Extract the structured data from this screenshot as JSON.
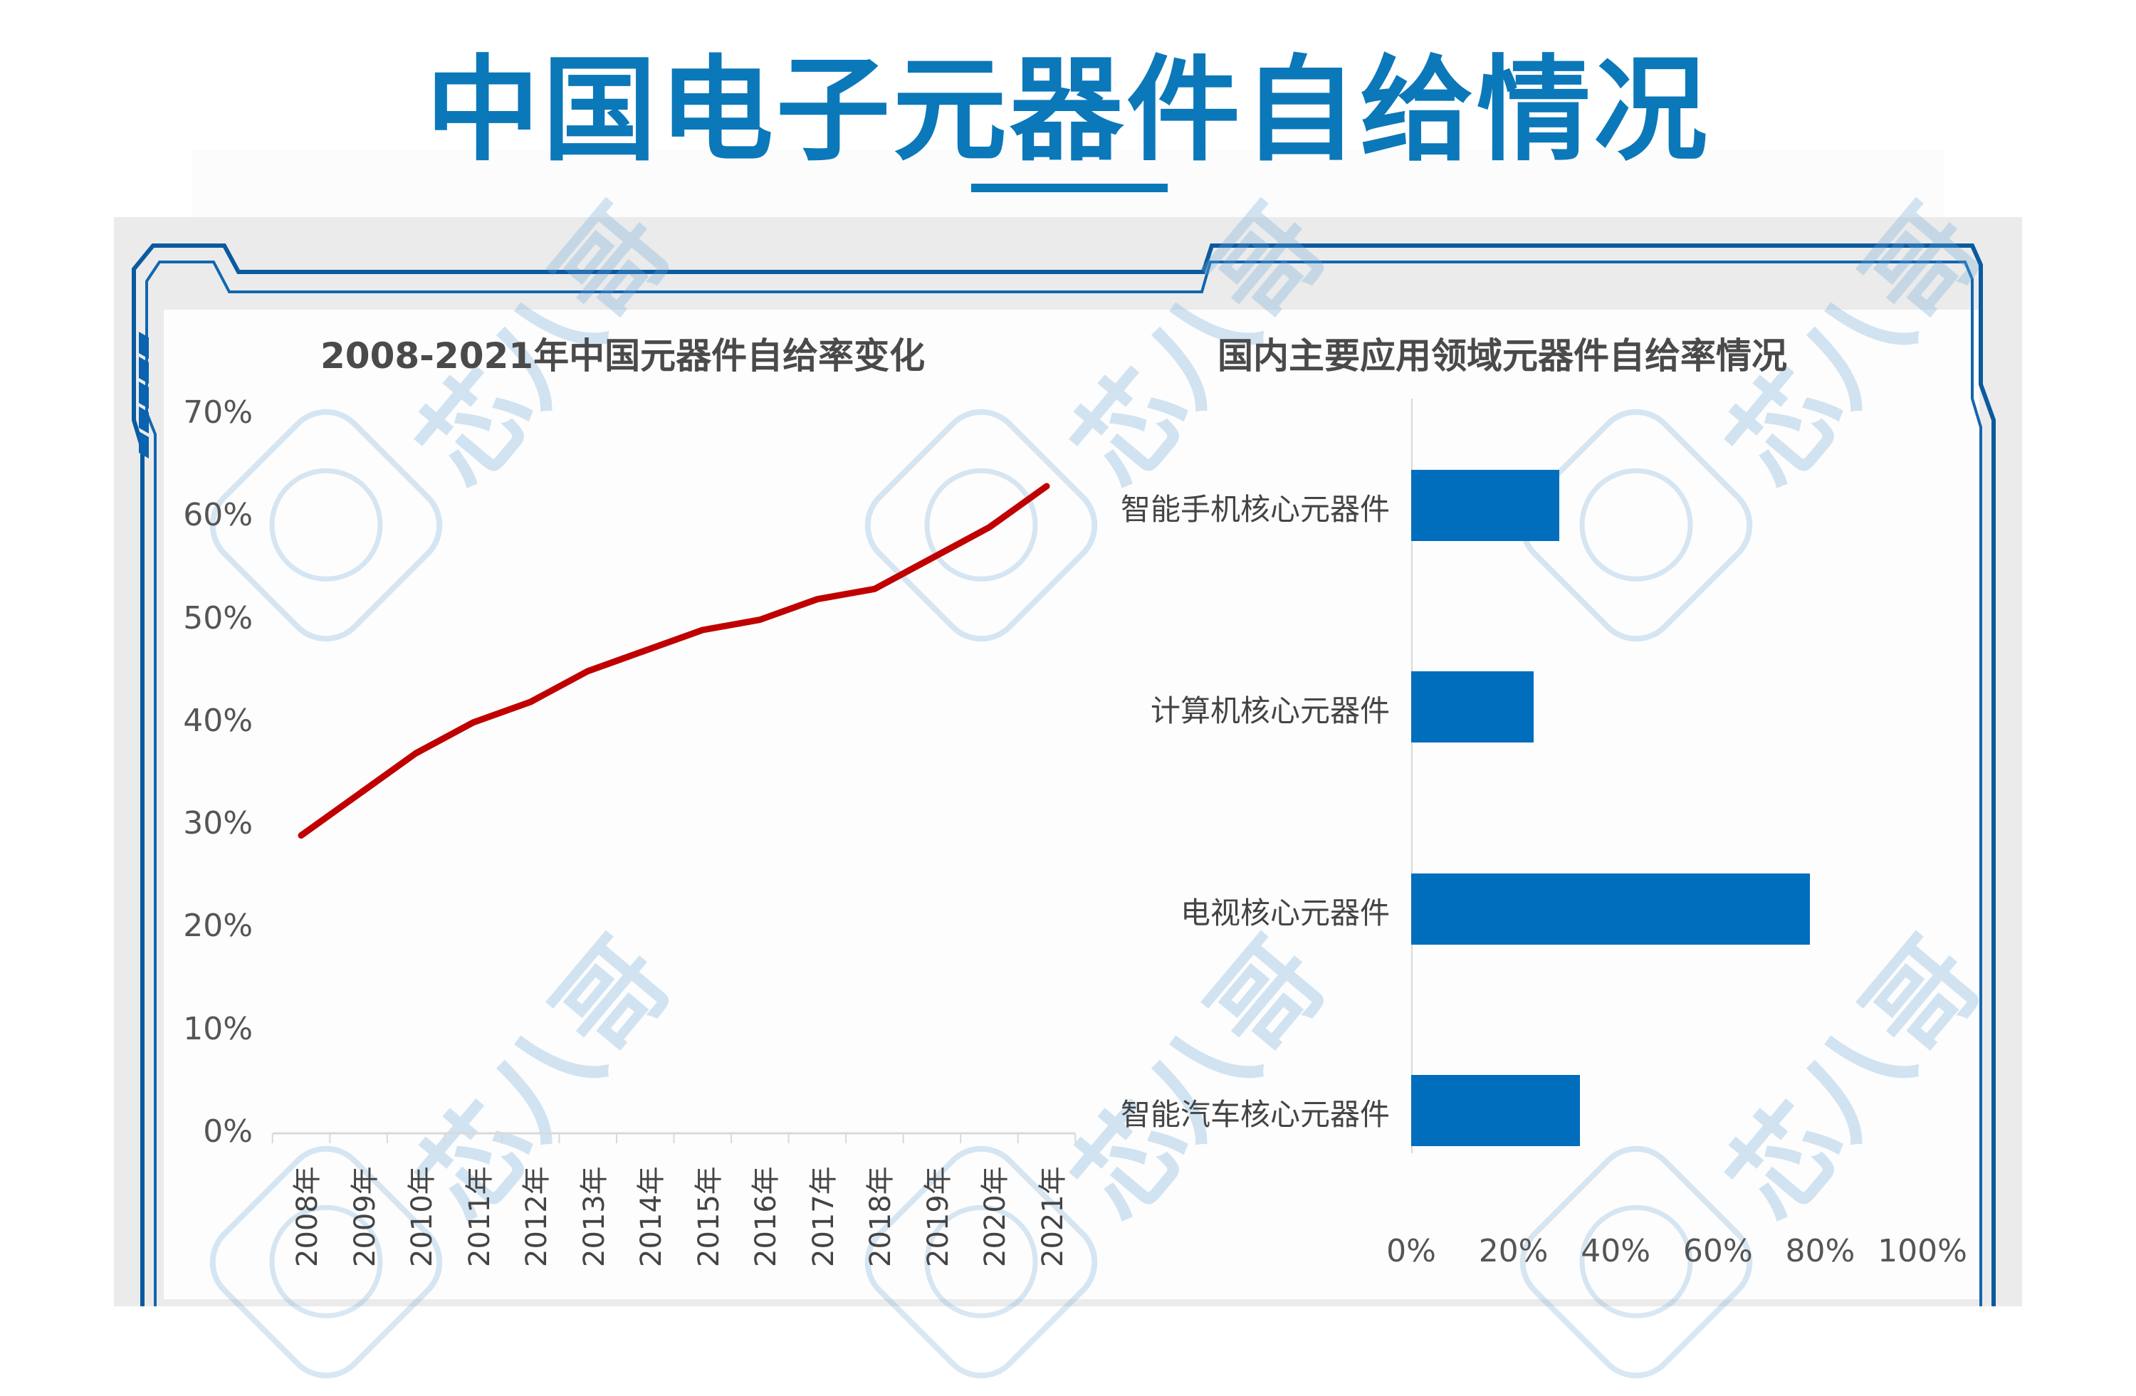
{
  "page": {
    "title": "中国电子元器件自给情况",
    "watermark": "芯八哥",
    "colors": {
      "title": "#0b78b9",
      "frame": "#0a5aa0",
      "line": "#c00000",
      "bar": "#006dbd",
      "panel": "#ebebeb"
    }
  },
  "left_chart": {
    "title": "2008-2021年中国元器件自给率变化",
    "y_ticks": [
      "70%",
      "60%",
      "50%",
      "40%",
      "30%",
      "20%",
      "10%",
      "0%"
    ],
    "x_ticks": [
      "2008年",
      "2009年",
      "2010年",
      "2011年",
      "2012年",
      "2013年",
      "2014年",
      "2015年",
      "2016年",
      "2017年",
      "2018年",
      "2019年",
      "2020年",
      "2021年"
    ]
  },
  "right_chart": {
    "title": "国内主要应用领域元器件自给率情况",
    "categories": [
      "智能手机核心元器件",
      "计算机核心元器件",
      "电视核心元器件",
      "智能汽车核心元器件"
    ],
    "x_ticks": [
      "0%",
      "20%",
      "40%",
      "60%",
      "80%",
      "100%"
    ]
  },
  "chart_data": [
    {
      "type": "line",
      "title": "2008-2021年中国元器件自给率变化",
      "xlabel": "",
      "ylabel": "",
      "categories": [
        "2008年",
        "2009年",
        "2010年",
        "2011年",
        "2012年",
        "2013年",
        "2014年",
        "2015年",
        "2016年",
        "2017年",
        "2018年",
        "2019年",
        "2020年",
        "2021年"
      ],
      "series": [
        {
          "name": "元器件自给率",
          "color": "#c00000",
          "values": [
            29,
            33,
            37,
            40,
            42,
            45,
            47,
            49,
            50,
            52,
            53,
            56,
            59,
            63
          ]
        }
      ],
      "unit": "%",
      "ylim": [
        0,
        70
      ],
      "y_tick_step": 10,
      "grid": false,
      "legend": "none"
    },
    {
      "type": "bar",
      "orientation": "horizontal",
      "title": "国内主要应用领域元器件自给率情况",
      "categories": [
        "智能手机核心元器件",
        "计算机核心元器件",
        "电视核心元器件",
        "智能汽车核心元器件"
      ],
      "values": [
        29,
        24,
        78,
        33
      ],
      "unit": "%",
      "xlim": [
        0,
        100
      ],
      "x_tick_step": 20,
      "color": "#006dbd",
      "grid": false,
      "legend": "none"
    }
  ]
}
